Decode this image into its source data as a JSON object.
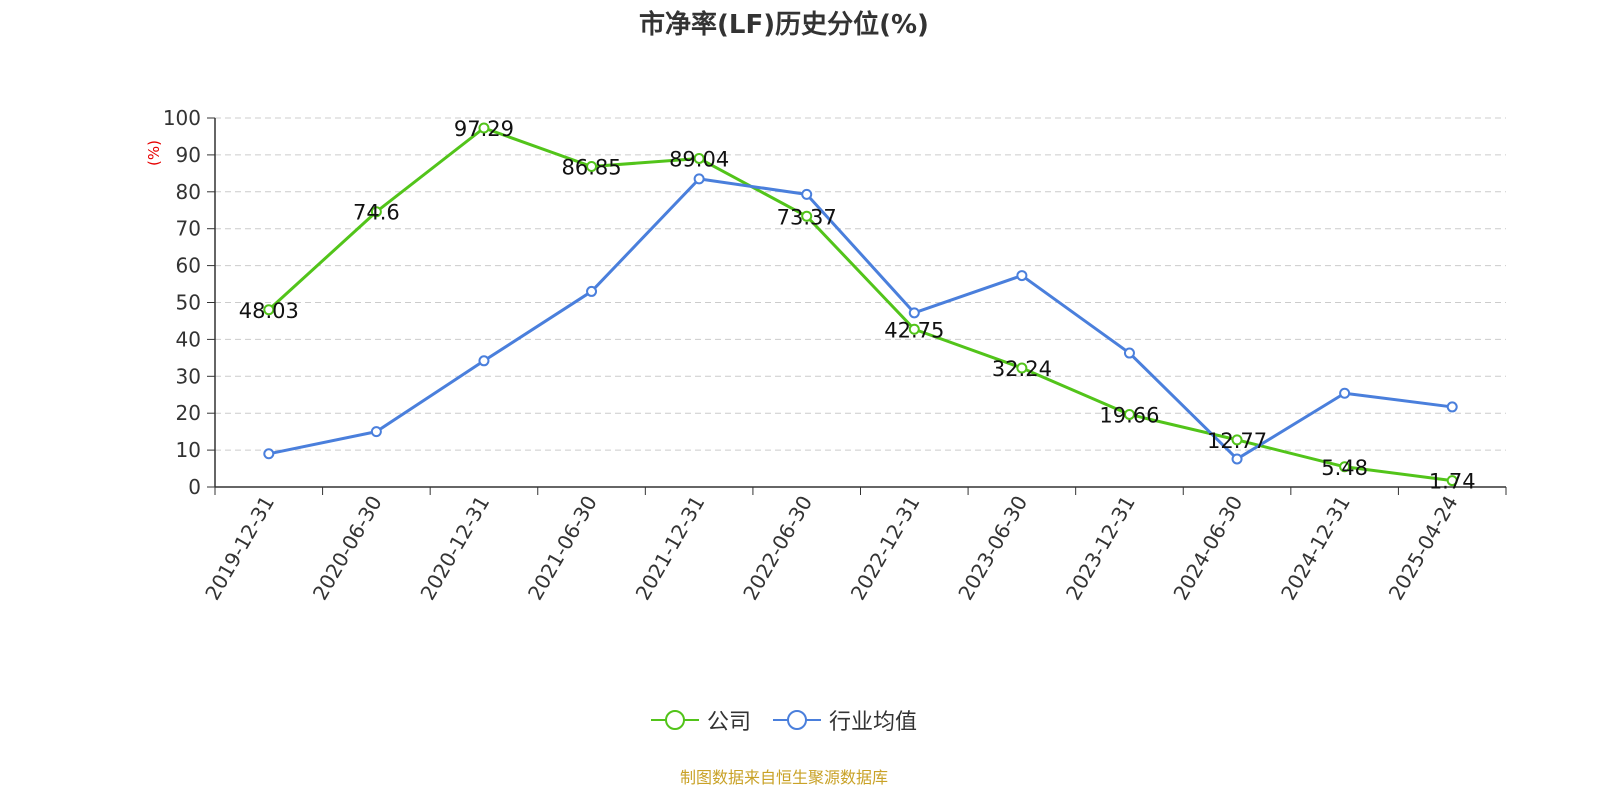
{
  "chart_data": {
    "type": "line",
    "title": "市净率(LF)历史分位(%)",
    "ylabel": "(%)",
    "xlabel": "",
    "ylim": [
      0,
      100
    ],
    "yticks": [
      0,
      10,
      20,
      30,
      40,
      50,
      60,
      70,
      80,
      90,
      100
    ],
    "grid": true,
    "legend_position": "bottom",
    "categories": [
      "2019-12-31",
      "2020-06-30",
      "2020-12-31",
      "2021-06-30",
      "2021-12-31",
      "2022-06-30",
      "2022-12-31",
      "2023-06-30",
      "2023-12-31",
      "2024-06-30",
      "2024-12-31",
      "2025-04-24"
    ],
    "series": [
      {
        "name": "公司",
        "color": "#52c41a",
        "values": [
          48.03,
          74.6,
          97.29,
          86.85,
          89.04,
          73.37,
          42.75,
          32.24,
          19.66,
          12.77,
          5.48,
          1.74
        ],
        "labels": [
          "48.03",
          "74.6",
          "97.29",
          "86.85",
          "89.04",
          "73.37",
          "42.75",
          "32.24",
          "19.66",
          "12.77",
          "5.48",
          "1.74"
        ]
      },
      {
        "name": "行业均值",
        "color": "#4a7fdc",
        "values": [
          9.0,
          15.0,
          34.2,
          53.0,
          83.5,
          79.3,
          47.2,
          57.3,
          36.3,
          7.6,
          25.4,
          21.7
        ]
      }
    ]
  },
  "footer": {
    "source": "制图数据来自恒生聚源数据库"
  }
}
